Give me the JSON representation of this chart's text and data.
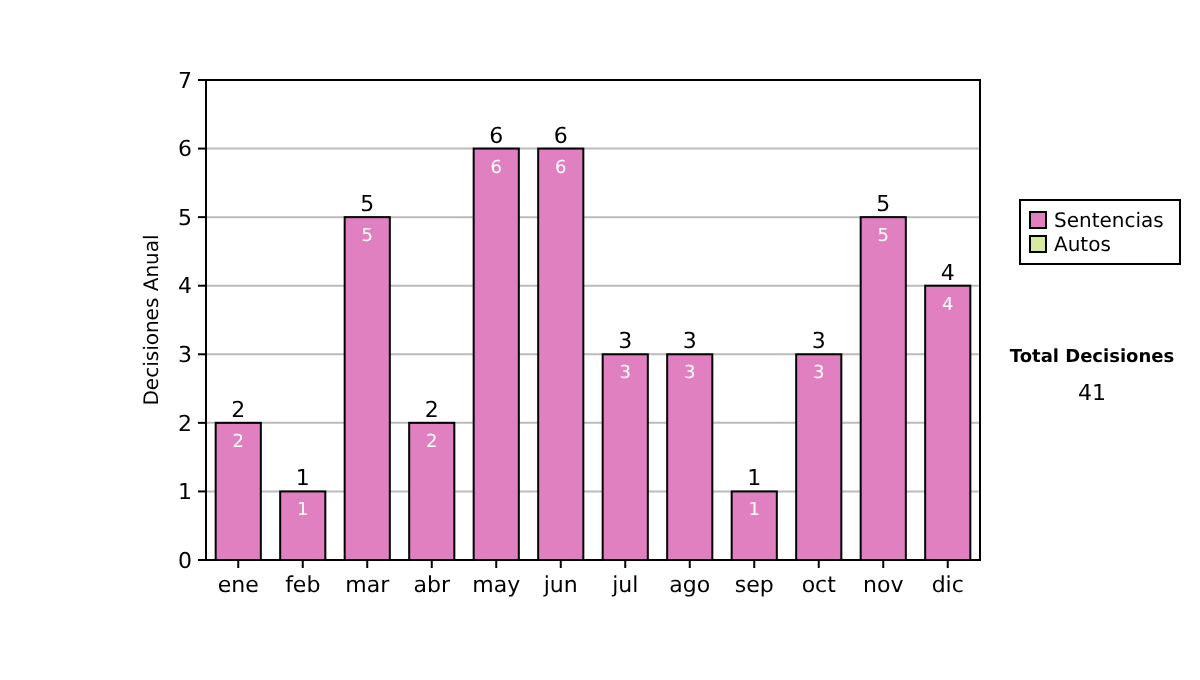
{
  "chart_data": {
    "type": "bar",
    "stacked": true,
    "ylabel": "Decisiones Anual",
    "categories": [
      "ene",
      "feb",
      "mar",
      "abr",
      "may",
      "jun",
      "jul",
      "ago",
      "sep",
      "oct",
      "nov",
      "dic"
    ],
    "series": [
      {
        "name": "Sentencias",
        "color": "#e080c0",
        "values": [
          2,
          1,
          5,
          2,
          6,
          6,
          3,
          3,
          1,
          3,
          5,
          4
        ]
      },
      {
        "name": "Autos",
        "color": "#d8eaa0",
        "values": [
          null,
          null,
          null,
          null,
          null,
          null,
          null,
          null,
          null,
          null,
          null,
          null
        ]
      }
    ],
    "data_labels": true,
    "totals": [
      "2",
      "1",
      "5",
      "2",
      "6",
      "6",
      "3",
      "3",
      "1",
      "3",
      "5",
      "4"
    ],
    "ylim": [
      0,
      7
    ],
    "yticks": [
      0,
      1,
      2,
      3,
      4,
      5,
      6,
      7
    ],
    "grid": "y",
    "legend": "right",
    "annotations": [
      "Total Decisiones",
      "41"
    ]
  }
}
